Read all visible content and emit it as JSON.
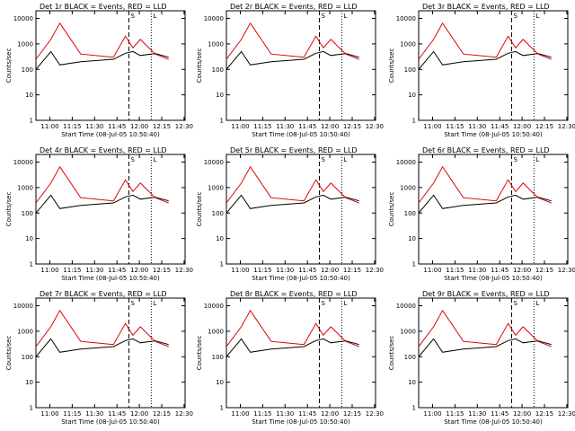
{
  "figure": {
    "background": "#ffffff"
  },
  "chart_data": [
    {
      "panel": "Det 1",
      "title": "Det 1r  BLACK = Events, RED = LLD",
      "ylabel": "Counts/sec",
      "xlabel": "Start Time (08-Jul-05 10:50:40)",
      "type": "line",
      "scale": "log",
      "xticks": [
        "11:00",
        "11:15",
        "11:30",
        "11:45",
        "12:00",
        "12:15",
        "12:30"
      ],
      "yticks": [
        "1",
        "10",
        "100",
        "1000",
        "10000"
      ],
      "markers": [
        {
          "label": "S",
          "time": "11:53"
        },
        {
          "label": "L",
          "time": "12:08"
        }
      ],
      "series": [
        {
          "name": "Events",
          "color": "#000000",
          "values": [
            [
              0,
              100
            ],
            [
              10,
              500
            ],
            [
              16,
              150
            ],
            [
              30,
              200
            ],
            [
              52,
              250
            ],
            [
              60,
              430
            ],
            [
              65,
              500
            ],
            [
              70,
              350
            ],
            [
              80,
              420
            ],
            [
              89,
              300
            ]
          ]
        },
        {
          "name": "LLD",
          "color": "#e00000",
          "values": [
            [
              0,
              250
            ],
            [
              10,
              1500
            ],
            [
              16,
              6500
            ],
            [
              30,
              400
            ],
            [
              52,
              300
            ],
            [
              60,
              2000
            ],
            [
              65,
              700
            ],
            [
              70,
              1500
            ],
            [
              80,
              400
            ],
            [
              89,
              250
            ]
          ]
        }
      ]
    },
    {
      "panel": "Det 2",
      "title": "Det 2r  BLACK = Events, RED = LLD",
      "ylabel": "Counts/sec",
      "xlabel": "Start Time (08-Jul-05 10:50:40)",
      "type": "line",
      "scale": "log",
      "xticks": [
        "11:00",
        "11:15",
        "11:30",
        "11:45",
        "12:00",
        "12:15",
        "12:30"
      ],
      "yticks": [
        "1",
        "10",
        "100",
        "1000",
        "10000"
      ],
      "markers": [
        {
          "label": "S",
          "time": "11:53"
        },
        {
          "label": "L",
          "time": "12:08"
        }
      ],
      "series": [
        {
          "name": "Events",
          "color": "#000000",
          "values": [
            [
              0,
              100
            ],
            [
              10,
              500
            ],
            [
              16,
              150
            ],
            [
              30,
              200
            ],
            [
              52,
              250
            ],
            [
              60,
              430
            ],
            [
              65,
              500
            ],
            [
              70,
              350
            ],
            [
              80,
              420
            ],
            [
              89,
              300
            ]
          ]
        },
        {
          "name": "LLD",
          "color": "#e00000",
          "values": [
            [
              0,
              250
            ],
            [
              10,
              1500
            ],
            [
              16,
              6500
            ],
            [
              30,
              400
            ],
            [
              52,
              300
            ],
            [
              60,
              2000
            ],
            [
              65,
              700
            ],
            [
              70,
              1500
            ],
            [
              80,
              400
            ],
            [
              89,
              250
            ]
          ]
        }
      ]
    },
    {
      "panel": "Det 3",
      "title": "Det 3r  BLACK = Events, RED = LLD",
      "ylabel": "Counts/sec",
      "xlabel": "Start Time (08-Jul-05 10:50:40)",
      "type": "line",
      "scale": "log",
      "xticks": [
        "11:00",
        "11:15",
        "11:30",
        "11:45",
        "12:00",
        "12:15",
        "12:30"
      ],
      "yticks": [
        "1",
        "10",
        "100",
        "1000",
        "10000"
      ],
      "markers": [
        {
          "label": "S",
          "time": "11:53"
        },
        {
          "label": "L",
          "time": "12:08"
        }
      ],
      "series": [
        {
          "name": "Events",
          "color": "#000000",
          "values": [
            [
              0,
              100
            ],
            [
              10,
              500
            ],
            [
              16,
              150
            ],
            [
              30,
              200
            ],
            [
              52,
              250
            ],
            [
              60,
              430
            ],
            [
              65,
              500
            ],
            [
              70,
              350
            ],
            [
              80,
              420
            ],
            [
              89,
              300
            ]
          ]
        },
        {
          "name": "LLD",
          "color": "#e00000",
          "values": [
            [
              0,
              250
            ],
            [
              10,
              1500
            ],
            [
              16,
              6500
            ],
            [
              30,
              400
            ],
            [
              52,
              300
            ],
            [
              60,
              2000
            ],
            [
              65,
              700
            ],
            [
              70,
              1500
            ],
            [
              80,
              400
            ],
            [
              89,
              250
            ]
          ]
        }
      ]
    },
    {
      "panel": "Det 4",
      "title": "Det 4r  BLACK = Events, RED = LLD",
      "ylabel": "Counts/sec",
      "xlabel": "Start Time (08-Jul-05 10:50:40)",
      "type": "line",
      "scale": "log",
      "xticks": [
        "11:00",
        "11:15",
        "11:30",
        "11:45",
        "12:00",
        "12:15",
        "12:30"
      ],
      "yticks": [
        "1",
        "10",
        "100",
        "1000",
        "10000"
      ],
      "markers": [
        {
          "label": "S",
          "time": "11:53"
        },
        {
          "label": "L",
          "time": "12:08"
        }
      ],
      "series": [
        {
          "name": "Events",
          "color": "#000000",
          "values": [
            [
              0,
              100
            ],
            [
              10,
              500
            ],
            [
              16,
              150
            ],
            [
              30,
              200
            ],
            [
              52,
              250
            ],
            [
              60,
              430
            ],
            [
              65,
              500
            ],
            [
              70,
              350
            ],
            [
              80,
              420
            ],
            [
              89,
              300
            ]
          ]
        },
        {
          "name": "LLD",
          "color": "#e00000",
          "values": [
            [
              0,
              250
            ],
            [
              10,
              1500
            ],
            [
              16,
              6500
            ],
            [
              30,
              400
            ],
            [
              52,
              300
            ],
            [
              60,
              2000
            ],
            [
              65,
              700
            ],
            [
              70,
              1500
            ],
            [
              80,
              400
            ],
            [
              89,
              250
            ]
          ]
        }
      ]
    },
    {
      "panel": "Det 5",
      "title": "Det 5r  BLACK = Events, RED = LLD",
      "ylabel": "Counts/sec",
      "xlabel": "Start Time (08-Jul-05 10:50:40)",
      "type": "line",
      "scale": "log",
      "xticks": [
        "11:00",
        "11:15",
        "11:30",
        "11:45",
        "12:00",
        "12:15",
        "12:30"
      ],
      "yticks": [
        "1",
        "10",
        "100",
        "1000",
        "10000"
      ],
      "markers": [
        {
          "label": "S",
          "time": "11:53"
        },
        {
          "label": "L",
          "time": "12:08"
        }
      ],
      "series": [
        {
          "name": "Events",
          "color": "#000000",
          "values": [
            [
              0,
              100
            ],
            [
              10,
              500
            ],
            [
              16,
              150
            ],
            [
              30,
              200
            ],
            [
              52,
              250
            ],
            [
              60,
              430
            ],
            [
              65,
              500
            ],
            [
              70,
              350
            ],
            [
              80,
              420
            ],
            [
              89,
              300
            ]
          ]
        },
        {
          "name": "LLD",
          "color": "#e00000",
          "values": [
            [
              0,
              250
            ],
            [
              10,
              1500
            ],
            [
              16,
              6500
            ],
            [
              30,
              400
            ],
            [
              52,
              300
            ],
            [
              60,
              2000
            ],
            [
              65,
              700
            ],
            [
              70,
              1500
            ],
            [
              80,
              400
            ],
            [
              89,
              250
            ]
          ]
        }
      ]
    },
    {
      "panel": "Det 6",
      "title": "Det 6r  BLACK = Events, RED = LLD",
      "ylabel": "Counts/sec",
      "xlabel": "Start Time (08-Jul-05 10:50:40)",
      "type": "line",
      "scale": "log",
      "xticks": [
        "11:00",
        "11:15",
        "11:30",
        "11:45",
        "12:00",
        "12:15",
        "12:30"
      ],
      "yticks": [
        "1",
        "10",
        "100",
        "1000",
        "10000"
      ],
      "markers": [
        {
          "label": "S",
          "time": "11:53"
        },
        {
          "label": "L",
          "time": "12:08"
        }
      ],
      "series": [
        {
          "name": "Events",
          "color": "#000000",
          "values": [
            [
              0,
              100
            ],
            [
              10,
              500
            ],
            [
              16,
              150
            ],
            [
              30,
              200
            ],
            [
              52,
              250
            ],
            [
              60,
              430
            ],
            [
              65,
              500
            ],
            [
              70,
              350
            ],
            [
              80,
              420
            ],
            [
              89,
              300
            ]
          ]
        },
        {
          "name": "LLD",
          "color": "#e00000",
          "values": [
            [
              0,
              250
            ],
            [
              10,
              1500
            ],
            [
              16,
              6500
            ],
            [
              30,
              400
            ],
            [
              52,
              300
            ],
            [
              60,
              2000
            ],
            [
              65,
              700
            ],
            [
              70,
              1500
            ],
            [
              80,
              400
            ],
            [
              89,
              250
            ]
          ]
        }
      ]
    },
    {
      "panel": "Det 7",
      "title": "Det 7r  BLACK = Events, RED = LLD",
      "ylabel": "Counts/sec",
      "xlabel": "Start Time (08-Jul-05 10:50:40)",
      "type": "line",
      "scale": "log",
      "xticks": [
        "11:00",
        "11:15",
        "11:30",
        "11:45",
        "12:00",
        "12:15",
        "12:30"
      ],
      "yticks": [
        "1",
        "10",
        "100",
        "1000",
        "10000"
      ],
      "markers": [
        {
          "label": "S",
          "time": "11:53"
        },
        {
          "label": "L",
          "time": "12:08"
        }
      ],
      "series": [
        {
          "name": "Events",
          "color": "#000000",
          "values": [
            [
              0,
              100
            ],
            [
              10,
              500
            ],
            [
              16,
              150
            ],
            [
              30,
              200
            ],
            [
              52,
              250
            ],
            [
              60,
              430
            ],
            [
              65,
              500
            ],
            [
              70,
              350
            ],
            [
              80,
              420
            ],
            [
              89,
              300
            ]
          ]
        },
        {
          "name": "LLD",
          "color": "#e00000",
          "values": [
            [
              0,
              250
            ],
            [
              10,
              1500
            ],
            [
              16,
              6500
            ],
            [
              30,
              400
            ],
            [
              52,
              300
            ],
            [
              60,
              2000
            ],
            [
              65,
              700
            ],
            [
              70,
              1500
            ],
            [
              80,
              400
            ],
            [
              89,
              250
            ]
          ]
        }
      ]
    },
    {
      "panel": "Det 8",
      "title": "Det 8r  BLACK = Events, RED = LLD",
      "ylabel": "Counts/sec",
      "xlabel": "Start Time (08-Jul-05 10:50:40)",
      "type": "line",
      "scale": "log",
      "xticks": [
        "11:00",
        "11:15",
        "11:30",
        "11:45",
        "12:00",
        "12:15",
        "12:30"
      ],
      "yticks": [
        "1",
        "10",
        "100",
        "1000",
        "10000"
      ],
      "markers": [
        {
          "label": "S",
          "time": "11:53"
        },
        {
          "label": "L",
          "time": "12:08"
        }
      ],
      "series": [
        {
          "name": "Events",
          "color": "#000000",
          "values": [
            [
              0,
              100
            ],
            [
              10,
              500
            ],
            [
              16,
              150
            ],
            [
              30,
              200
            ],
            [
              52,
              250
            ],
            [
              60,
              430
            ],
            [
              65,
              500
            ],
            [
              70,
              350
            ],
            [
              80,
              420
            ],
            [
              89,
              300
            ]
          ]
        },
        {
          "name": "LLD",
          "color": "#e00000",
          "values": [
            [
              0,
              250
            ],
            [
              10,
              1500
            ],
            [
              16,
              6500
            ],
            [
              30,
              400
            ],
            [
              52,
              300
            ],
            [
              60,
              2000
            ],
            [
              65,
              700
            ],
            [
              70,
              1500
            ],
            [
              80,
              400
            ],
            [
              89,
              250
            ]
          ]
        }
      ]
    },
    {
      "panel": "Det 9",
      "title": "Det 9r  BLACK = Events, RED = LLD",
      "ylabel": "Counts/sec",
      "xlabel": "Start Time (08-Jul-05 10:50:40)",
      "type": "line",
      "scale": "log",
      "xticks": [
        "11:00",
        "11:15",
        "11:30",
        "11:45",
        "12:00",
        "12:15",
        "12:30"
      ],
      "yticks": [
        "1",
        "10",
        "100",
        "1000",
        "10000"
      ],
      "markers": [
        {
          "label": "S",
          "time": "11:53"
        },
        {
          "label": "L",
          "time": "12:08"
        }
      ],
      "series": [
        {
          "name": "Events",
          "color": "#000000",
          "values": [
            [
              0,
              100
            ],
            [
              10,
              500
            ],
            [
              16,
              150
            ],
            [
              30,
              200
            ],
            [
              52,
              250
            ],
            [
              60,
              430
            ],
            [
              65,
              500
            ],
            [
              70,
              350
            ],
            [
              80,
              420
            ],
            [
              89,
              300
            ]
          ]
        },
        {
          "name": "LLD",
          "color": "#e00000",
          "values": [
            [
              0,
              250
            ],
            [
              10,
              1500
            ],
            [
              16,
              6500
            ],
            [
              30,
              400
            ],
            [
              52,
              300
            ],
            [
              60,
              2000
            ],
            [
              65,
              700
            ],
            [
              70,
              1500
            ],
            [
              80,
              400
            ],
            [
              89,
              250
            ]
          ]
        }
      ]
    }
  ]
}
